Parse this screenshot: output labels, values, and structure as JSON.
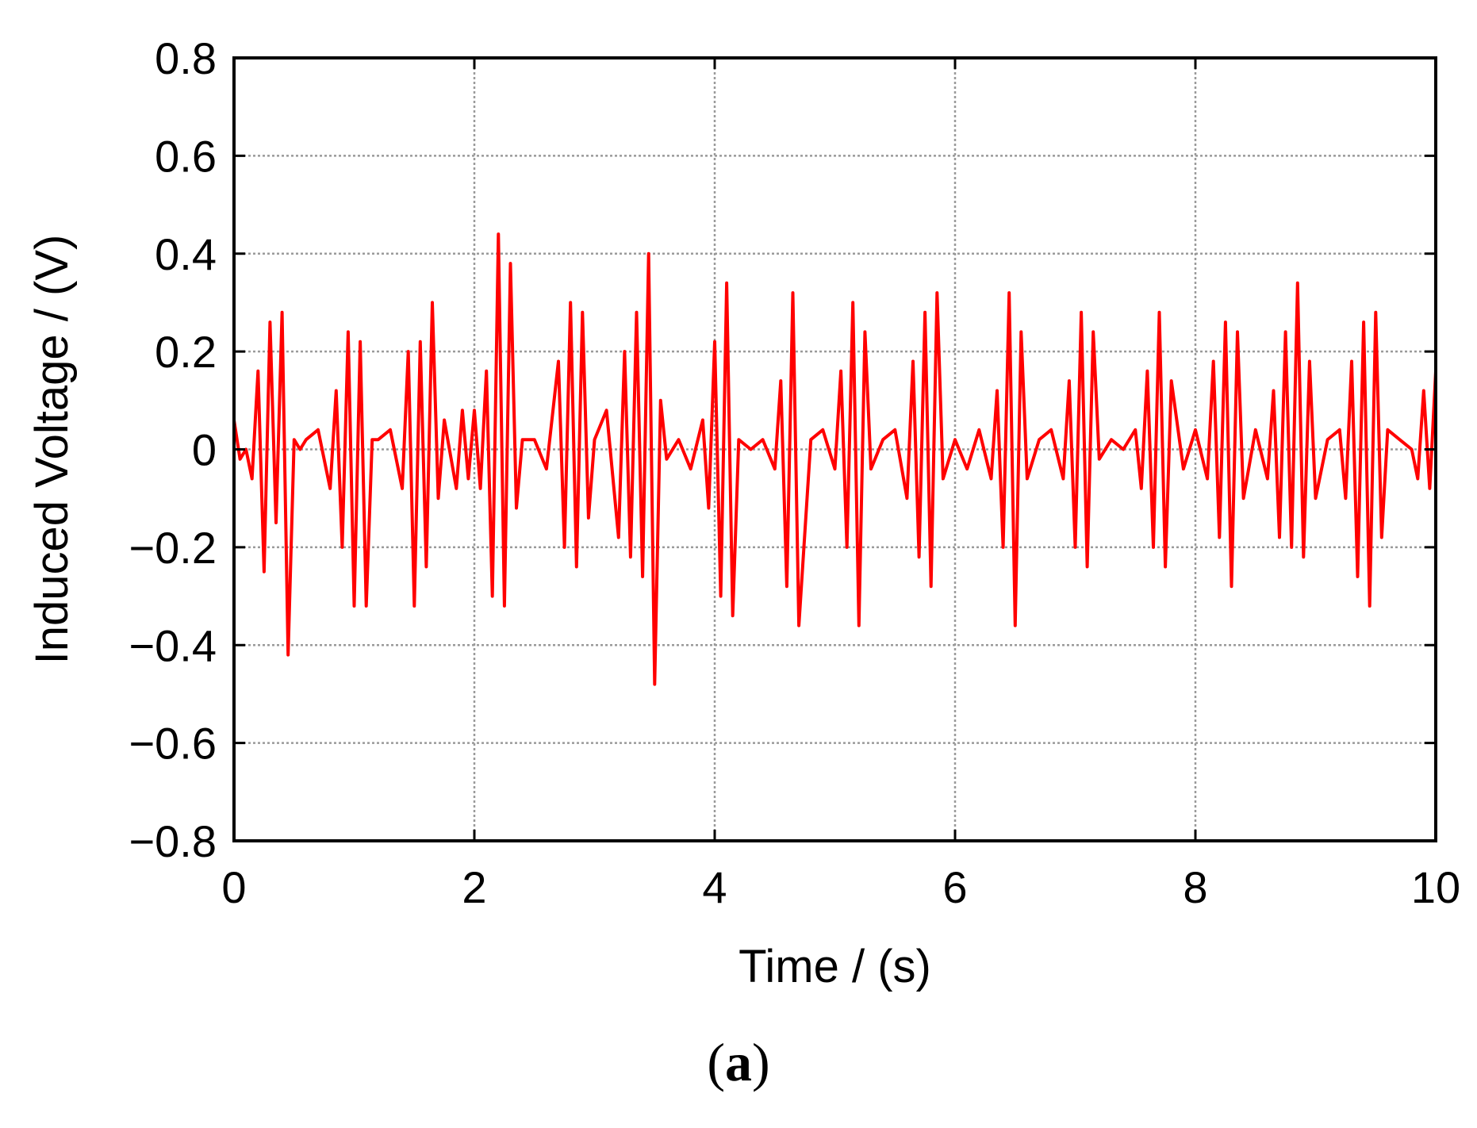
{
  "chart_data": {
    "type": "line",
    "title": "",
    "xlabel": "Time / (s)",
    "ylabel": "Induced Voltage / (V)",
    "xlim": [
      0,
      10
    ],
    "ylim": [
      -0.8,
      0.8
    ],
    "xticks": [
      0,
      2,
      4,
      6,
      8,
      10
    ],
    "yticks": [
      0.8,
      0.6,
      0.4,
      0.2,
      0,
      -0.2,
      -0.4,
      -0.6,
      -0.8
    ],
    "xtick_labels": [
      "0",
      "2",
      "4",
      "6",
      "8",
      "10"
    ],
    "ytick_labels": [
      "0.8",
      "0.6",
      "0.4",
      "0.2",
      "0",
      "−0.2",
      "−0.4",
      "−0.6",
      "−0.8"
    ],
    "grid": true,
    "line_color": "#ff0000",
    "series": [
      {
        "x": [
          0.0,
          0.05,
          0.1,
          0.15,
          0.2,
          0.25,
          0.3,
          0.35,
          0.4,
          0.45,
          0.5,
          0.55,
          0.6,
          0.7,
          0.8,
          0.85,
          0.9,
          0.95,
          1.0,
          1.05,
          1.1,
          1.15,
          1.2,
          1.3,
          1.4,
          1.45,
          1.5,
          1.55,
          1.6,
          1.65,
          1.7,
          1.75,
          1.85,
          1.9,
          1.95,
          2.0,
          2.05,
          2.1,
          2.15,
          2.2,
          2.25,
          2.3,
          2.35,
          2.4,
          2.5,
          2.6,
          2.7,
          2.75,
          2.8,
          2.85,
          2.9,
          2.95,
          3.0,
          3.1,
          3.2,
          3.25,
          3.3,
          3.35,
          3.4,
          3.45,
          3.5,
          3.55,
          3.6,
          3.7,
          3.8,
          3.9,
          3.95,
          4.0,
          4.05,
          4.1,
          4.15,
          4.2,
          4.3,
          4.4,
          4.5,
          4.55,
          4.6,
          4.65,
          4.7,
          4.8,
          4.9,
          5.0,
          5.05,
          5.1,
          5.15,
          5.2,
          5.25,
          5.3,
          5.4,
          5.5,
          5.6,
          5.65,
          5.7,
          5.75,
          5.8,
          5.85,
          5.9,
          6.0,
          6.1,
          6.2,
          6.3,
          6.35,
          6.4,
          6.45,
          6.5,
          6.55,
          6.6,
          6.7,
          6.8,
          6.9,
          6.95,
          7.0,
          7.05,
          7.1,
          7.15,
          7.2,
          7.3,
          7.4,
          7.5,
          7.55,
          7.6,
          7.65,
          7.7,
          7.75,
          7.8,
          7.9,
          8.0,
          8.1,
          8.15,
          8.2,
          8.25,
          8.3,
          8.35,
          8.4,
          8.5,
          8.6,
          8.65,
          8.7,
          8.75,
          8.8,
          8.85,
          8.9,
          8.95,
          9.0,
          9.1,
          9.2,
          9.25,
          9.3,
          9.35,
          9.4,
          9.45,
          9.5,
          9.55,
          9.6,
          9.7,
          9.8,
          9.85,
          9.9,
          9.95,
          10.0
        ],
        "y": [
          0.06,
          -0.02,
          0.0,
          -0.06,
          0.16,
          -0.25,
          0.26,
          -0.15,
          0.28,
          -0.42,
          0.02,
          0.0,
          0.02,
          0.04,
          -0.08,
          0.12,
          -0.2,
          0.24,
          -0.32,
          0.22,
          -0.32,
          0.02,
          0.02,
          0.04,
          -0.08,
          0.2,
          -0.32,
          0.22,
          -0.24,
          0.3,
          -0.1,
          0.06,
          -0.08,
          0.08,
          -0.06,
          0.08,
          -0.08,
          0.16,
          -0.3,
          0.44,
          -0.32,
          0.38,
          -0.12,
          0.02,
          0.02,
          -0.04,
          0.18,
          -0.2,
          0.3,
          -0.24,
          0.28,
          -0.14,
          0.02,
          0.08,
          -0.18,
          0.2,
          -0.22,
          0.28,
          -0.26,
          0.4,
          -0.48,
          0.1,
          -0.02,
          0.02,
          -0.04,
          0.06,
          -0.12,
          0.22,
          -0.3,
          0.34,
          -0.34,
          0.02,
          0.0,
          0.02,
          -0.04,
          0.14,
          -0.28,
          0.32,
          -0.36,
          0.02,
          0.04,
          -0.04,
          0.16,
          -0.2,
          0.3,
          -0.36,
          0.24,
          -0.04,
          0.02,
          0.04,
          -0.1,
          0.18,
          -0.22,
          0.28,
          -0.28,
          0.32,
          -0.06,
          0.02,
          -0.04,
          0.04,
          -0.06,
          0.12,
          -0.2,
          0.32,
          -0.36,
          0.24,
          -0.06,
          0.02,
          0.04,
          -0.06,
          0.14,
          -0.2,
          0.28,
          -0.24,
          0.24,
          -0.02,
          0.02,
          0.0,
          0.04,
          -0.08,
          0.16,
          -0.2,
          0.28,
          -0.24,
          0.14,
          -0.04,
          0.04,
          -0.06,
          0.18,
          -0.18,
          0.26,
          -0.28,
          0.24,
          -0.1,
          0.04,
          -0.06,
          0.12,
          -0.18,
          0.24,
          -0.2,
          0.34,
          -0.22,
          0.18,
          -0.1,
          0.02,
          0.04,
          -0.1,
          0.18,
          -0.26,
          0.26,
          -0.32,
          0.28,
          -0.18,
          0.04,
          0.02,
          0.0,
          -0.06,
          0.12,
          -0.08,
          0.16
        ]
      }
    ]
  },
  "panel_label": "a"
}
